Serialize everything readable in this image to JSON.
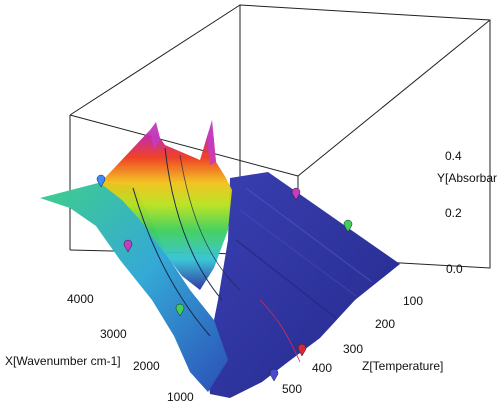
{
  "chart_data": {
    "type": "surface3d",
    "title": "",
    "axes": {
      "x": {
        "label": "X[Wavenumber cm-1]",
        "ticks": [
          "4000",
          "3000",
          "2000",
          "1000"
        ],
        "range": [
          4000,
          800
        ]
      },
      "y": {
        "label": "Y[Absorbar",
        "ticks": [
          "0.0",
          "0.2",
          "0.4"
        ],
        "range": [
          0,
          0.55
        ]
      },
      "z": {
        "label": "Z[Temperature]",
        "ticks": [
          "100",
          "200",
          "300",
          "400",
          "500"
        ],
        "range": [
          50,
          520
        ]
      }
    },
    "colormap": [
      "#2b2f9e",
      "#2f6fd8",
      "#34c3d6",
      "#3fcf5a",
      "#b8e21e",
      "#f2c21b",
      "#ef3a1d",
      "#c3249e",
      "#c48ad6"
    ],
    "peaks_at_low_temperature": [
      {
        "wavenumber": 3400,
        "absorbance": 0.37
      },
      {
        "wavenumber": 2950,
        "absorbance": 0.49
      },
      {
        "wavenumber": 2200,
        "absorbance": 0.52
      },
      {
        "wavenumber": 1600,
        "absorbance": 0.34
      }
    ],
    "surface_flat_above_temperature": 250,
    "markers": [
      "#3a8cff",
      "#c43cc4",
      "#3fcf5a",
      "#d22a3a",
      "#4a4ad0"
    ]
  }
}
